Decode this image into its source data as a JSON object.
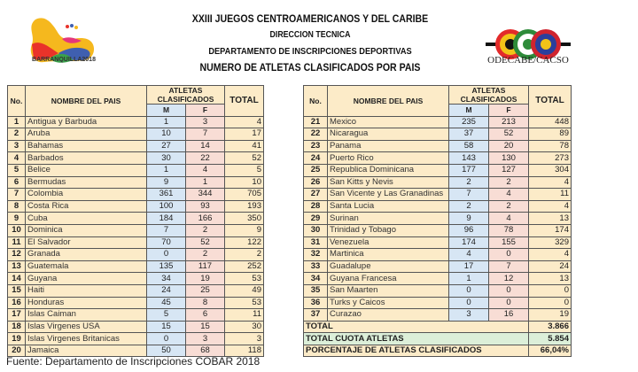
{
  "header": {
    "line1": "XXIII JUEGOS CENTROAMERICANOS Y DEL CARIBE",
    "line2": "DIRECCION TECNICA",
    "line3": "DEPARTAMENTO DE INSCRIPCIONES DEPORTIVAS",
    "line4": "NUMERO DE ATLETAS CLASIFICADOS POR PAIS"
  },
  "logos": {
    "left": "BARRANQUILLA2018",
    "right": "ODECABE/CACSO"
  },
  "columns": {
    "no": "No.",
    "name": "NOMBRE DEL PAIS",
    "group": "ATLETAS CLASIFICADOS",
    "m": "M",
    "f": "F",
    "total": "TOTAL"
  },
  "left_rows": [
    [
      "1",
      "Antigua y Barbuda",
      "1",
      "3",
      "4"
    ],
    [
      "2",
      "Aruba",
      "10",
      "7",
      "17"
    ],
    [
      "3",
      "Bahamas",
      "27",
      "14",
      "41"
    ],
    [
      "4",
      "Barbados",
      "30",
      "22",
      "52"
    ],
    [
      "5",
      "Belice",
      "1",
      "4",
      "5"
    ],
    [
      "6",
      "Bermudas",
      "9",
      "1",
      "10"
    ],
    [
      "7",
      "Colombia",
      "361",
      "344",
      "705"
    ],
    [
      "8",
      "Costa Rica",
      "100",
      "93",
      "193"
    ],
    [
      "9",
      "Cuba",
      "184",
      "166",
      "350"
    ],
    [
      "10",
      "Dominica",
      "7",
      "2",
      "9"
    ],
    [
      "11",
      "El Salvador",
      "70",
      "52",
      "122"
    ],
    [
      "12",
      "Granada",
      "0",
      "2",
      "2"
    ],
    [
      "13",
      "Guatemala",
      "135",
      "117",
      "252"
    ],
    [
      "14",
      "Guyana",
      "34",
      "19",
      "53"
    ],
    [
      "15",
      "Haiti",
      "24",
      "25",
      "49"
    ],
    [
      "16",
      "Honduras",
      "45",
      "8",
      "53"
    ],
    [
      "17",
      "Islas Caiman",
      "5",
      "6",
      "11"
    ],
    [
      "18",
      "Islas Virgenes USA",
      "15",
      "15",
      "30"
    ],
    [
      "19",
      "Islas Virgenes Britanicas",
      "0",
      "3",
      "3"
    ],
    [
      "20",
      "Jamaica",
      "50",
      "68",
      "118"
    ]
  ],
  "right_rows": [
    [
      "21",
      "Mexico",
      "235",
      "213",
      "448"
    ],
    [
      "22",
      "Nicaragua",
      "37",
      "52",
      "89"
    ],
    [
      "23",
      "Panama",
      "58",
      "20",
      "78"
    ],
    [
      "24",
      "Puerto Rico",
      "143",
      "130",
      "273"
    ],
    [
      "25",
      "Republica Dominicana",
      "177",
      "127",
      "304"
    ],
    [
      "26",
      "San Kitts y Nevis",
      "2",
      "2",
      "4"
    ],
    [
      "27",
      "San Vicente y Las Granadinas",
      "7",
      "4",
      "11"
    ],
    [
      "28",
      "Santa Lucia",
      "2",
      "2",
      "4"
    ],
    [
      "29",
      "Surinan",
      "9",
      "4",
      "13"
    ],
    [
      "30",
      "Trinidad y Tobago",
      "96",
      "78",
      "174"
    ],
    [
      "31",
      "Venezuela",
      "174",
      "155",
      "329"
    ],
    [
      "32",
      "Martinica",
      "4",
      "0",
      "4"
    ],
    [
      "33",
      "Guadalupe",
      "17",
      "7",
      "24"
    ],
    [
      "34",
      "Guyana Francesa",
      "1",
      "12",
      "13"
    ],
    [
      "35",
      "San Maarten",
      "0",
      "0",
      "0"
    ],
    [
      "36",
      "Turks y Caicos",
      "0",
      "0",
      "0"
    ],
    [
      "37",
      "Curazao",
      "3",
      "16",
      "19"
    ]
  ],
  "summary": {
    "total_label": "TOTAL",
    "total_value": "3.866",
    "cuota_label": "TOTAL CUOTA ATLETAS",
    "cuota_value": "5.854",
    "pct_label": "PORCENTAJE DE ATLETAS CLASIFICADOS",
    "pct_value": "66,04%"
  },
  "source": "Fuente: Departamento de Inscripciones COBAR 2018",
  "colors": {
    "background": "#fcebc8",
    "male": "#d7e6f4",
    "female": "#f8ddd5",
    "cuota": "#dcefd9"
  }
}
